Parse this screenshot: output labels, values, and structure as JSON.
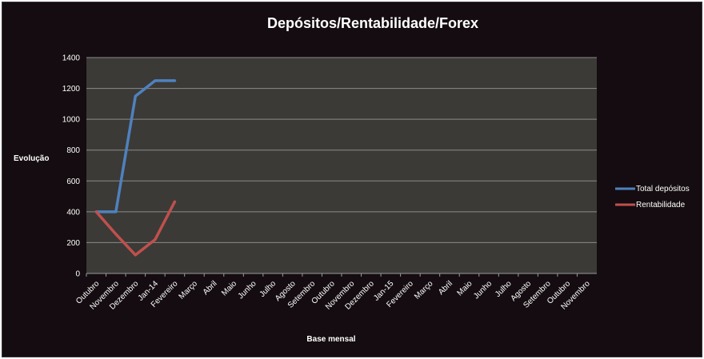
{
  "chart_data": {
    "type": "line",
    "title": "Depósitos/Rentabilidade/Forex",
    "xlabel": "Base mensal",
    "ylabel": "Evolução",
    "ylim": [
      0,
      1400
    ],
    "yticks": [
      0,
      200,
      400,
      600,
      800,
      1000,
      1200,
      1400
    ],
    "grid": true,
    "legend_position": "right",
    "categories": [
      "Outubro",
      "Novembro",
      "Dezembro",
      "Jan-14",
      "Fevereiro",
      "Março",
      "Abril",
      "Maio",
      "Junho",
      "Julho",
      "Agosto",
      "Setembro",
      "Outubro",
      "Novembro",
      "Dezembro",
      "Jan-15",
      "Fevereiro",
      "Março",
      "Abril",
      "Maio",
      "Junho",
      "Julho",
      "Agosto",
      "Setembro",
      "Outubro",
      "Novembro"
    ],
    "series": [
      {
        "name": "Total depósitos",
        "color": "#4f81bd",
        "values": [
          400,
          400,
          1150,
          1250,
          1250,
          null,
          null,
          null,
          null,
          null,
          null,
          null,
          null,
          null,
          null,
          null,
          null,
          null,
          null,
          null,
          null,
          null,
          null,
          null,
          null,
          null
        ]
      },
      {
        "name": "Rentabilidade",
        "color": "#c0504d",
        "values": [
          400,
          255,
          120,
          220,
          465,
          null,
          null,
          null,
          null,
          null,
          null,
          null,
          null,
          null,
          null,
          null,
          null,
          null,
          null,
          null,
          null,
          null,
          null,
          null,
          null,
          null
        ]
      }
    ],
    "colors": {
      "background": "#140c10",
      "plot_area": "#3b3a37",
      "gridline": "#8a8a8a",
      "text": "#ffffff"
    }
  }
}
